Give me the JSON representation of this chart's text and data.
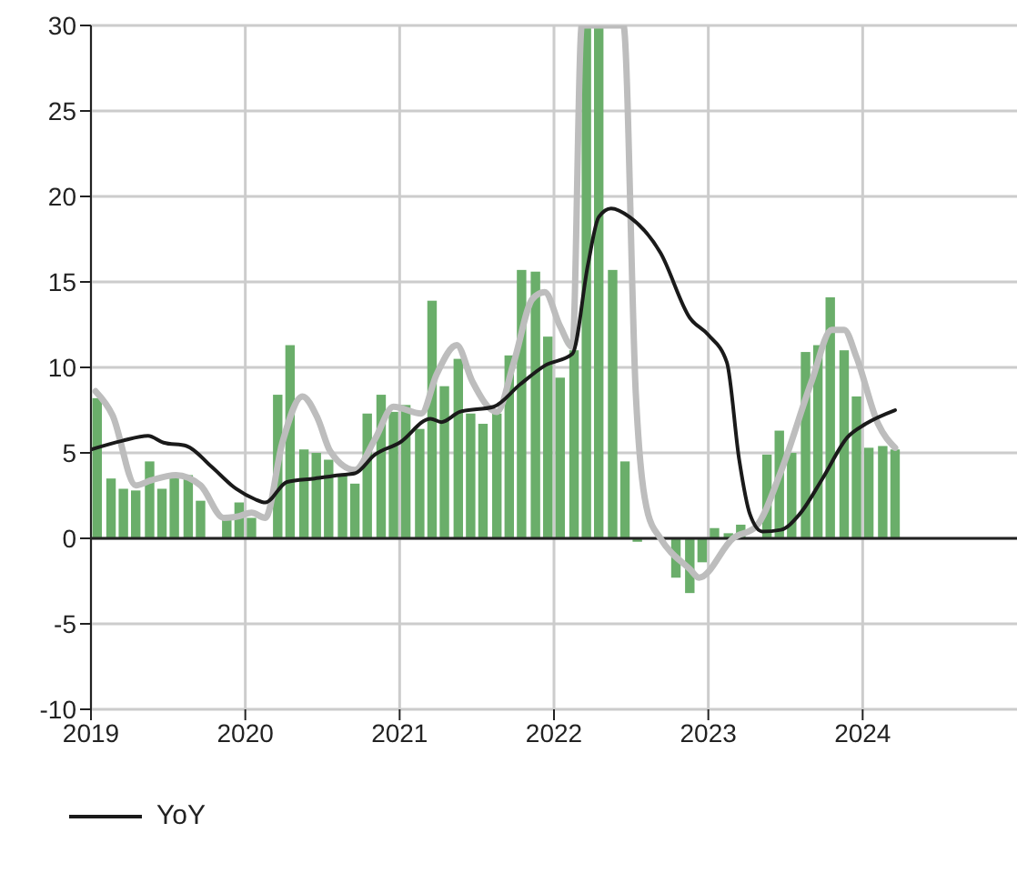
{
  "chart_data": {
    "type": "bar",
    "xlim": [
      2019,
      2025
    ],
    "xticks": [
      2019,
      2020,
      2021,
      2022,
      2023,
      2024
    ],
    "ylim": [
      -10,
      30
    ],
    "yticks": [
      -10,
      -5,
      0,
      5,
      10,
      15,
      20,
      25,
      30
    ],
    "grid": true,
    "legend": "bottom left",
    "series": [
      {
        "color": "#6aae6a",
        "x": [
          2019.04,
          2019.13,
          2019.21,
          2019.29,
          2019.38,
          2019.46,
          2019.54,
          2019.63,
          2019.71,
          2019.79,
          2019.88,
          2019.96,
          2020.04,
          2020.13,
          2020.21,
          2020.29,
          2020.38,
          2020.46,
          2020.54,
          2020.63,
          2020.71,
          2020.79,
          2020.88,
          2020.96,
          2021.04,
          2021.13,
          2021.21,
          2021.29,
          2021.38,
          2021.46,
          2021.54,
          2021.63,
          2021.71,
          2021.79,
          2021.88,
          2021.96,
          2022.04,
          2022.13,
          2022.21,
          2022.29,
          2022.38,
          2022.46,
          2022.54,
          2022.63,
          2022.71,
          2022.79,
          2022.88,
          2022.96,
          2023.04,
          2023.13,
          2023.21,
          2023.29,
          2023.38,
          2023.46,
          2023.54,
          2023.63,
          2023.71,
          2023.79,
          2023.88,
          2023.96,
          2024.04,
          2024.13,
          2024.21
        ],
        "values": [
          8.2,
          3.5,
          2.9,
          2.8,
          4.5,
          2.9,
          3.7,
          3.7,
          2.2,
          null,
          1.2,
          2.1,
          1.2,
          null,
          8.4,
          11.3,
          5.2,
          5.0,
          4.6,
          3.7,
          3.2,
          7.3,
          8.4,
          7.4,
          7.8,
          6.4,
          13.9,
          8.9,
          10.5,
          7.3,
          6.7,
          7.3,
          10.7,
          15.7,
          15.6,
          11.8,
          9.4,
          11.0,
          30,
          30,
          15.7,
          4.5,
          -0.2,
          null,
          null,
          -2.3,
          -3.2,
          -1.4,
          0.6,
          0.3,
          0.8,
          null,
          4.9,
          6.3,
          5.0,
          10.9,
          11.3,
          14.1,
          11.0,
          8.3,
          5.3,
          5.4,
          5.2
        ]
      },
      {
        "type": "line",
        "color": "#bdbdbd",
        "x": [
          2019.03,
          2019.14,
          2019.29,
          2019.39,
          2019.55,
          2019.71,
          2019.86,
          2019.96,
          2020.04,
          2020.13,
          2020.24,
          2020.37,
          2020.47,
          2020.55,
          2020.71,
          2020.84,
          2020.96,
          2021.14,
          2021.24,
          2021.37,
          2021.47,
          2021.63,
          2021.74,
          2021.86,
          2021.94,
          2022.04,
          2022.12,
          2022.18,
          2022.45,
          2022.53,
          2022.61,
          2022.69,
          2022.88,
          2022.94,
          2023.16,
          2023.31,
          2023.47,
          2023.67,
          2023.8,
          2023.88,
          2023.96,
          2024.1,
          2024.21
        ],
        "values": [
          8.6,
          7.2,
          3.1,
          3.4,
          3.7,
          3.1,
          1.2,
          1.3,
          1.5,
          1.2,
          5.6,
          8.3,
          7.0,
          5.1,
          4.0,
          5.8,
          7.7,
          7.3,
          9.6,
          11.3,
          9.2,
          7.4,
          10.3,
          14.0,
          14.4,
          12.4,
          11.2,
          30,
          30,
          8.5,
          1.4,
          0,
          -1.8,
          -2.3,
          0,
          0.7,
          3.9,
          9.2,
          12.2,
          12.2,
          10.6,
          6.7,
          5.3
        ]
      },
      {
        "type": "line",
        "name": "YoY",
        "color": "#1a1a1a",
        "x": [
          2019.0,
          2019.2,
          2019.37,
          2019.47,
          2019.62,
          2019.78,
          2019.94,
          2020.06,
          2020.13,
          2020.27,
          2020.45,
          2020.61,
          2020.71,
          2020.84,
          2021.0,
          2021.2,
          2021.27,
          2021.39,
          2021.61,
          2021.78,
          2021.94,
          2022.12,
          2022.22,
          2022.29,
          2022.37,
          2022.49,
          2022.69,
          2022.88,
          2023.0,
          2023.12,
          2023.2,
          2023.27,
          2023.35,
          2023.47,
          2023.59,
          2023.74,
          2023.9,
          2024.02,
          2024.21
        ],
        "values": [
          5.2,
          5.7,
          6.0,
          5.6,
          5.4,
          4.2,
          2.9,
          2.3,
          2.1,
          3.3,
          3.5,
          3.7,
          3.8,
          4.9,
          5.6,
          7.0,
          6.8,
          7.4,
          7.7,
          9.0,
          10.1,
          10.8,
          16.0,
          18.8,
          19.3,
          18.8,
          16.7,
          12.9,
          11.9,
          10.3,
          4.6,
          1.4,
          0.4,
          0.5,
          1.4,
          3.5,
          5.9,
          6.7,
          7.5
        ]
      }
    ]
  }
}
